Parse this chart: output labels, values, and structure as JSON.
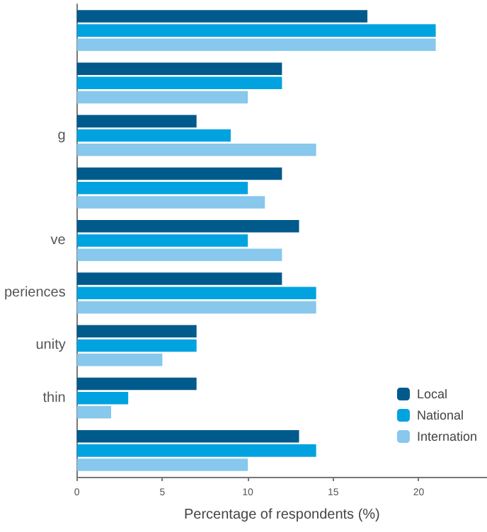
{
  "chart_data": {
    "type": "bar",
    "orientation": "horizontal",
    "xlabel": "Percentage of respondents (%)",
    "categories": [
      null,
      null,
      "g",
      null,
      "ve",
      "periences",
      "unity",
      "thin",
      null
    ],
    "series": [
      {
        "name": "Local",
        "color": "#005a8c",
        "values": [
          17,
          12,
          7,
          12,
          13,
          12,
          7,
          7,
          13
        ]
      },
      {
        "name": "National",
        "color": "#00a3e0",
        "values": [
          21,
          12,
          9,
          10,
          10,
          14,
          7,
          3,
          14
        ]
      },
      {
        "name": "Internation",
        "color": "#87c8ec",
        "values": [
          21,
          10,
          14,
          11,
          12,
          14,
          5,
          2,
          10
        ]
      }
    ],
    "xlim": [
      0,
      24
    ],
    "xticks": [
      0,
      5,
      10,
      15,
      20
    ],
    "grid": false,
    "legend": "bottom right"
  }
}
